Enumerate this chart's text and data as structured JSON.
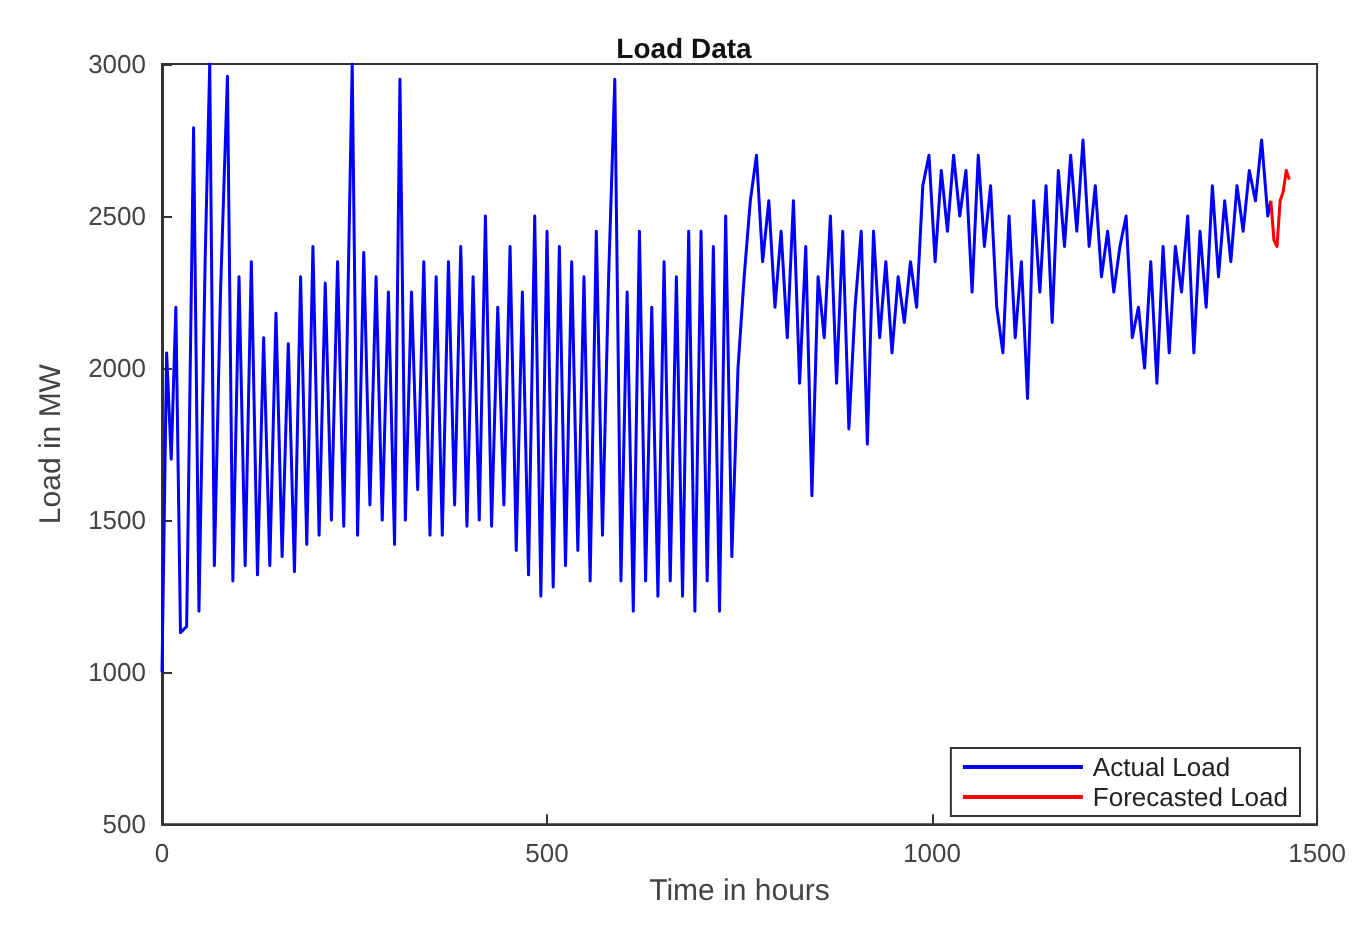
{
  "chart_data": {
    "type": "line",
    "title": "Load Data",
    "xlabel": "Time in hours",
    "ylabel": "Load in MW",
    "xlim": [
      0,
      1500
    ],
    "xticks": [
      0,
      500,
      1000,
      1500
    ],
    "ylim": [
      500,
      3000
    ],
    "yticks": [
      500,
      1000,
      1500,
      2000,
      2500,
      3000
    ],
    "grid": false,
    "legend": "bottom right",
    "marker": "none",
    "line_style": "solid",
    "series": [
      {
        "name": "Actual Load",
        "color": "#0000ff",
        "x": [
          0,
          6,
          12,
          18,
          24,
          32,
          41,
          48,
          56,
          62,
          68,
          76,
          85,
          92,
          100,
          108,
          116,
          124,
          132,
          140,
          148,
          156,
          164,
          172,
          180,
          188,
          196,
          204,
          212,
          220,
          228,
          236,
          247,
          254,
          262,
          270,
          278,
          286,
          294,
          302,
          309,
          316,
          324,
          332,
          340,
          348,
          356,
          364,
          372,
          380,
          388,
          396,
          404,
          412,
          420,
          428,
          436,
          444,
          452,
          460,
          468,
          476,
          484,
          492,
          500,
          508,
          516,
          524,
          532,
          540,
          548,
          556,
          564,
          572,
          580,
          588,
          596,
          604,
          612,
          620,
          628,
          636,
          644,
          652,
          660,
          668,
          676,
          684,
          692,
          700,
          708,
          716,
          724,
          732,
          740,
          748,
          756,
          764,
          772,
          780,
          788,
          796,
          804,
          812,
          820,
          828,
          836,
          844,
          852,
          860,
          868,
          876,
          884,
          892,
          900,
          908,
          916,
          924,
          932,
          940,
          948,
          956,
          964,
          972,
          980,
          988,
          996,
          1004,
          1012,
          1020,
          1028,
          1036,
          1044,
          1052,
          1060,
          1068,
          1076,
          1084,
          1092,
          1100,
          1108,
          1116,
          1124,
          1132,
          1140,
          1148,
          1156,
          1164,
          1172,
          1180,
          1188,
          1196,
          1204,
          1212,
          1220,
          1228,
          1236,
          1244,
          1252,
          1260,
          1268,
          1276,
          1284,
          1292,
          1300,
          1308,
          1316,
          1324,
          1332,
          1340,
          1348,
          1356,
          1364,
          1372,
          1380,
          1388,
          1396,
          1404,
          1412,
          1420,
          1428,
          1436,
          1440
        ],
        "values": [
          1000,
          2050,
          1700,
          2200,
          1130,
          1150,
          2790,
          1200,
          2350,
          3000,
          1350,
          2250,
          2960,
          1300,
          2300,
          1350,
          2350,
          1320,
          2100,
          1350,
          2180,
          1380,
          2080,
          1330,
          2300,
          1420,
          2400,
          1450,
          2280,
          1500,
          2350,
          1480,
          3000,
          1450,
          2380,
          1550,
          2300,
          1500,
          2250,
          1420,
          2950,
          1500,
          2250,
          1600,
          2350,
          1450,
          2300,
          1450,
          2350,
          1550,
          2400,
          1480,
          2300,
          1500,
          2500,
          1480,
          2200,
          1550,
          2400,
          1400,
          2250,
          1320,
          2500,
          1250,
          2450,
          1280,
          2400,
          1350,
          2350,
          1400,
          2300,
          1300,
          2450,
          1450,
          2300,
          2950,
          1300,
          2250,
          1200,
          2450,
          1300,
          2200,
          1250,
          2350,
          1300,
          2300,
          1250,
          2450,
          1200,
          2450,
          1300,
          2400,
          1200,
          2500,
          1380,
          2000,
          2300,
          2550,
          2700,
          2350,
          2550,
          2200,
          2450,
          2100,
          2550,
          1950,
          2400,
          1580,
          2300,
          2100,
          2500,
          1950,
          2450,
          1800,
          2200,
          2450,
          1750,
          2450,
          2100,
          2350,
          2050,
          2300,
          2150,
          2350,
          2200,
          2600,
          2700,
          2350,
          2650,
          2450,
          2700,
          2500,
          2650,
          2250,
          2700,
          2400,
          2600,
          2200,
          2050,
          2500,
          2100,
          2350,
          1900,
          2550,
          2250,
          2600,
          2150,
          2650,
          2400,
          2700,
          2450,
          2750,
          2400,
          2600,
          2300,
          2450,
          2250,
          2400,
          2500,
          2100,
          2200,
          2000,
          2350,
          1950,
          2400,
          2050,
          2400,
          2250,
          2500,
          2050,
          2450,
          2200,
          2600,
          2300,
          2550,
          2350,
          2600,
          2450,
          2650,
          2550,
          2750,
          2500,
          2550
        ]
      },
      {
        "name": "Forecasted Load",
        "color": "#ff0000",
        "x": [
          1440,
          1444,
          1448,
          1452,
          1456,
          1460,
          1464
        ],
        "values": [
          2550,
          2420,
          2400,
          2550,
          2580,
          2650,
          2620
        ]
      }
    ]
  }
}
